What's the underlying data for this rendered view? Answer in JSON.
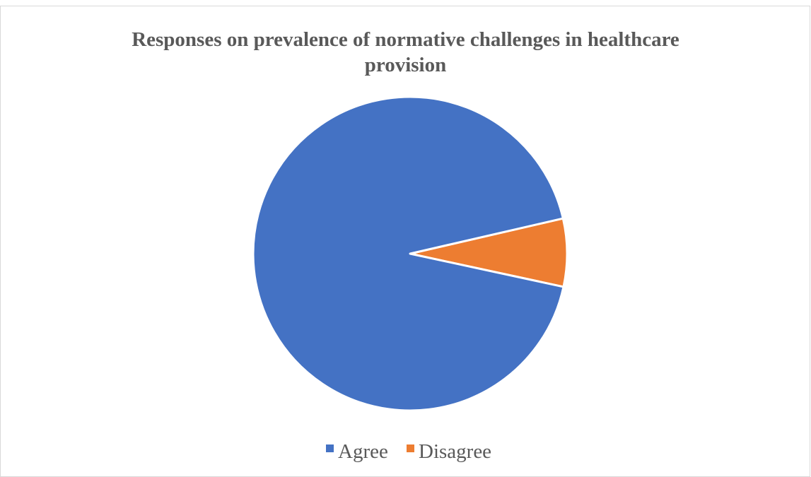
{
  "chart_data": {
    "type": "pie",
    "title_lines": [
      "Responses on prevalence of normative challenges in healthcare",
      "provision"
    ],
    "title": "Responses on prevalence of normative challenges in healthcare provision",
    "categories": [
      "Agree",
      "Disagree"
    ],
    "values": [
      93,
      7
    ],
    "colors": [
      "#4472c4",
      "#ed7d31"
    ],
    "legend_position": "bottom"
  }
}
